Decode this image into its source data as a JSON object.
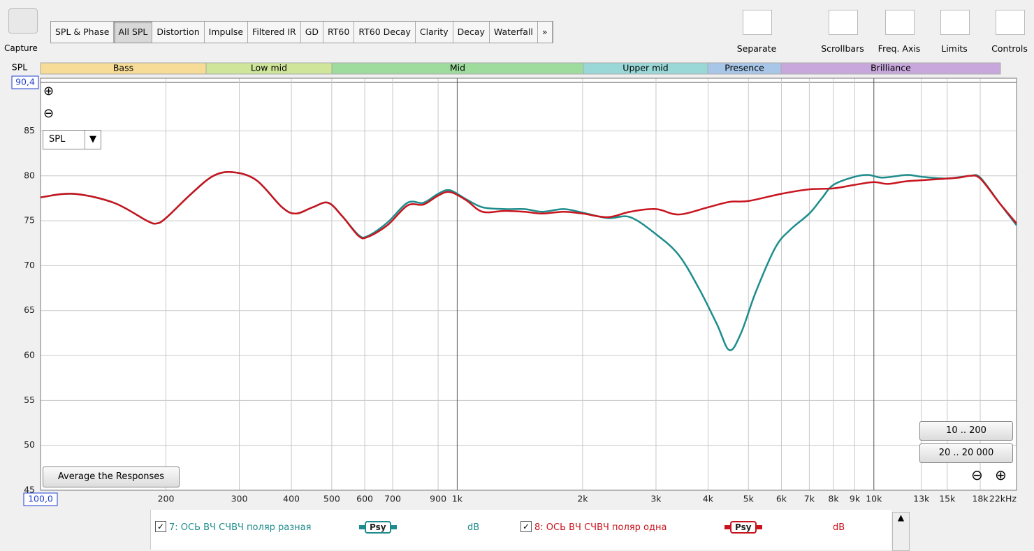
{
  "toolbar": {
    "capture": "Capture",
    "tabs": [
      "SPL & Phase",
      "All SPL",
      "Distortion",
      "Impulse",
      "Filtered IR",
      "GD",
      "RT60",
      "RT60 Decay",
      "Clarity",
      "Decay",
      "Waterfall",
      "»"
    ],
    "selected_tab": "All SPL",
    "tools": [
      "Separate",
      "Scrollbars",
      "Freq. Axis",
      "Limits",
      "Controls"
    ]
  },
  "bands": [
    "Bass",
    "Low mid",
    "Mid",
    "Upper mid",
    "Presence",
    "Brilliance"
  ],
  "controls": {
    "measure": "SPL",
    "average": "Average the Responses",
    "range_1": "10 .. 200",
    "range_2": "20 .. 20 000"
  },
  "legend": [
    {
      "label": "7: ОСЬ ВЧ СЧВЧ поляр разная",
      "badge": "Psy",
      "unit": "dB"
    },
    {
      "label": "8: ОСЬ ВЧ СЧВЧ поляр одна",
      "badge": "Psy",
      "unit": "dB"
    }
  ],
  "chart_data": {
    "type": "line",
    "ylabel": "SPL",
    "xlog": true,
    "grid": true,
    "xlim": [
      100,
      22000
    ],
    "ylim": [
      45,
      90.4
    ],
    "xticks": [
      {
        "value": 100,
        "label": "100,0"
      },
      200,
      300,
      400,
      500,
      600,
      700,
      900,
      {
        "value": 1000,
        "label": "1k"
      },
      {
        "value": 2000,
        "label": "2k"
      },
      {
        "value": 3000,
        "label": "3k"
      },
      {
        "value": 4000,
        "label": "4k"
      },
      {
        "value": 5000,
        "label": "5k"
      },
      {
        "value": 6000,
        "label": "6k"
      },
      {
        "value": 7000,
        "label": "7k"
      },
      {
        "value": 8000,
        "label": "8k"
      },
      {
        "value": 9000,
        "label": "9k"
      },
      {
        "value": 10000,
        "label": "10k"
      },
      {
        "value": 13000,
        "label": "13k"
      },
      {
        "value": 15000,
        "label": "15k"
      },
      {
        "value": 18000,
        "label": "18k"
      },
      {
        "value": 22000,
        "label": "22kHz"
      }
    ],
    "yticks": [
      45,
      50,
      55,
      60,
      65,
      70,
      75,
      80,
      85,
      {
        "value": 90.4,
        "label": "90,4"
      }
    ],
    "series": [
      {
        "name": "7: ОСЬ ВЧ СЧВЧ поляр разная",
        "color": "#1e8c8c",
        "x": [
          100,
          120,
          150,
          180,
          190,
          200,
          230,
          260,
          290,
          330,
          380,
          410,
          450,
          490,
          530,
          580,
          610,
          680,
          760,
          830,
          900,
          960,
          1050,
          1150,
          1300,
          1450,
          1600,
          1800,
          2000,
          2300,
          2600,
          3000,
          3400,
          3800,
          4200,
          4500,
          4800,
          5200,
          5800,
          6300,
          7000,
          7500,
          8000,
          9000,
          9700,
          10500,
          12000,
          13000,
          15000,
          17000,
          18000,
          20000,
          22000
        ],
        "values": [
          77.6,
          78,
          77,
          75,
          74.7,
          75.3,
          78,
          80,
          80.4,
          79.5,
          76.5,
          75.8,
          76.5,
          77,
          75.5,
          73.4,
          73.3,
          74.8,
          77,
          77,
          78,
          78.4,
          77.4,
          76.5,
          76.3,
          76.3,
          76,
          76.3,
          75.9,
          75.3,
          75.4,
          73.5,
          71.2,
          67.5,
          63.5,
          60.6,
          62.5,
          67,
          72,
          74,
          75.8,
          77.5,
          79,
          79.9,
          80.1,
          79.8,
          80.1,
          79.9,
          79.7,
          80,
          79.8,
          77,
          74.5
        ]
      },
      {
        "name": "8: ОСЬ ВЧ СЧВЧ поляр одна",
        "color": "#c8141e",
        "x": [
          100,
          120,
          150,
          180,
          190,
          200,
          230,
          260,
          290,
          330,
          380,
          410,
          450,
          490,
          530,
          580,
          610,
          680,
          760,
          830,
          900,
          960,
          1050,
          1150,
          1300,
          1450,
          1600,
          1800,
          2000,
          2300,
          2600,
          3000,
          3400,
          4000,
          4500,
          5000,
          6000,
          7000,
          8000,
          9000,
          10000,
          10800,
          12000,
          14000,
          16000,
          17000,
          18000,
          20000,
          22000
        ],
        "values": [
          77.6,
          78,
          77,
          75,
          74.7,
          75.3,
          78,
          80,
          80.4,
          79.5,
          76.5,
          75.8,
          76.5,
          77,
          75.5,
          73.3,
          73.2,
          74.5,
          76.7,
          76.8,
          77.8,
          78.2,
          77.3,
          76,
          76.1,
          76,
          75.8,
          76,
          75.8,
          75.4,
          76,
          76.3,
          75.7,
          76.5,
          77.1,
          77.2,
          78,
          78.5,
          78.6,
          79,
          79.3,
          79.1,
          79.4,
          79.6,
          79.8,
          80,
          79.7,
          77,
          74.7
        ]
      }
    ]
  }
}
